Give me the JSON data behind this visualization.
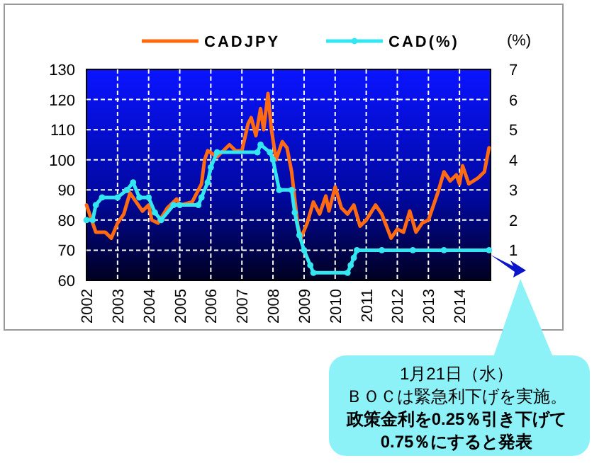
{
  "chart_data": {
    "type": "line",
    "y2label": "(%)",
    "legend": "top",
    "grid": true,
    "xlim": [
      2002,
      2015
    ],
    "xticks": [
      2002,
      2003,
      2004,
      2005,
      2006,
      2007,
      2008,
      2009,
      2010,
      2011,
      2012,
      2013,
      2014
    ],
    "ylim": [
      60,
      130
    ],
    "yticks": [
      60,
      70,
      80,
      90,
      100,
      110,
      120,
      130
    ],
    "y2lim": [
      0,
      7
    ],
    "y2ticks": [
      1,
      2,
      3,
      4,
      5,
      6,
      7
    ],
    "series": [
      {
        "name": "CADJPY",
        "color": "#ff6a13",
        "x": [
          2002.0,
          2002.3,
          2002.6,
          2002.8,
          2003.0,
          2003.2,
          2003.4,
          2003.8,
          2004.0,
          2004.1,
          2004.3,
          2004.6,
          2004.9,
          2005.0,
          2005.4,
          2005.7,
          2005.8,
          2005.9,
          2006.2,
          2006.6,
          2006.8,
          2007.0,
          2007.2,
          2007.3,
          2007.45,
          2007.6,
          2007.7,
          2007.84,
          2007.95,
          2008.1,
          2008.3,
          2008.45,
          2008.6,
          2008.8,
          2008.9,
          2009.1,
          2009.3,
          2009.5,
          2009.7,
          2009.8,
          2010.0,
          2010.2,
          2010.4,
          2010.6,
          2010.8,
          2011.0,
          2011.3,
          2011.5,
          2011.8,
          2012.0,
          2012.2,
          2012.4,
          2012.6,
          2012.8,
          2013.0,
          2013.3,
          2013.5,
          2013.7,
          2013.9,
          2014.0,
          2014.1,
          2014.3,
          2014.6,
          2014.8,
          2014.95
        ],
        "values": [
          85,
          76,
          76,
          74,
          79,
          82,
          89,
          83,
          85,
          80,
          79,
          84,
          87,
          85,
          86,
          92,
          100,
          103,
          101,
          105,
          103,
          103,
          112,
          114,
          108,
          117,
          110,
          122,
          110,
          100,
          106,
          104,
          96,
          78,
          74,
          79,
          86,
          82,
          88,
          83,
          91,
          84,
          82,
          85,
          78,
          80,
          85,
          82,
          74,
          77,
          76,
          83,
          76,
          79,
          80,
          89,
          96,
          93,
          95,
          92,
          98,
          92,
          94,
          96,
          104
        ]
      },
      {
        "name": "CAD(%)",
        "axis": "y2",
        "marker": "circle",
        "color": "#33e6f0",
        "x": [
          2002.0,
          2002.2,
          2002.3,
          2002.5,
          2003.0,
          2003.3,
          2003.5,
          2003.7,
          2004.0,
          2004.2,
          2004.4,
          2004.8,
          2005.0,
          2005.6,
          2005.7,
          2005.9,
          2006.0,
          2006.2,
          2007.5,
          2007.6,
          2007.9,
          2008.0,
          2008.2,
          2008.6,
          2008.7,
          2008.85,
          2009.0,
          2009.2,
          2009.3,
          2010.4,
          2010.5,
          2010.6,
          2010.7,
          2011.5,
          2012.5,
          2013.5,
          2014.95
        ],
        "values": [
          2.0,
          2.0,
          2.5,
          2.75,
          2.75,
          3.0,
          3.25,
          2.75,
          2.75,
          2.25,
          2.0,
          2.5,
          2.5,
          2.5,
          2.75,
          3.25,
          3.75,
          4.25,
          4.25,
          4.5,
          4.25,
          4.0,
          3.0,
          3.0,
          2.25,
          1.5,
          1.0,
          0.5,
          0.25,
          0.25,
          0.5,
          0.75,
          1.0,
          1.0,
          1.0,
          1.0,
          1.0
        ]
      }
    ],
    "annotations": [
      "1月21日（水）",
      "ＢＯＣは緊急利下げを実施。",
      "政策金利を0.25％引き下げて",
      "0.75％にすると発表"
    ]
  }
}
